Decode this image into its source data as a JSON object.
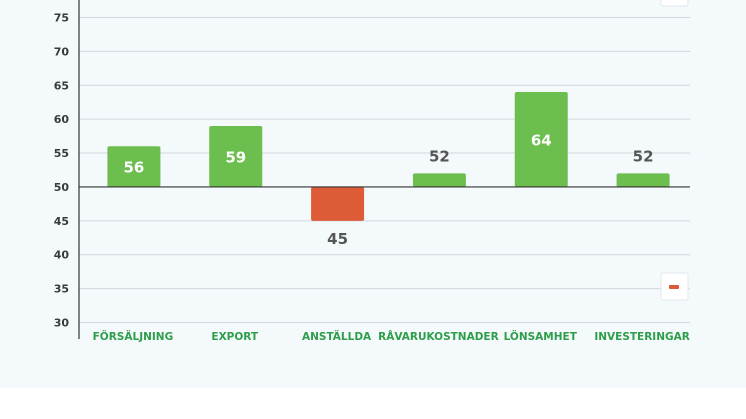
{
  "chart_data": {
    "type": "bar",
    "title": "",
    "xlabel": "",
    "ylabel": "",
    "baseline": 50,
    "ylim": [
      30,
      78
    ],
    "yticks": [
      30,
      35,
      40,
      45,
      50,
      55,
      60,
      65,
      70,
      75
    ],
    "categories": [
      "FÖRSÄLJNING",
      "EXPORT",
      "ANSTÄLLDA",
      "RÅVARUKOSTNADER",
      "LÖNSAMHET",
      "INVESTERINGAR"
    ],
    "values": [
      56,
      59,
      45,
      52,
      64,
      52
    ],
    "grid": true,
    "colors": {
      "positive": "#6cbf4f",
      "negative": "#de5b38",
      "tick_label": "#3a3a3a",
      "category_label": "#2e9e4a",
      "label_inside": "#ffffff",
      "label_outside": "#555555",
      "gridline": "#cfd8de",
      "axis": "#333333"
    }
  },
  "legend": {
    "position": "top-right",
    "swatch_color": "#ffffff",
    "negative_swatch_color": "#de5b38"
  }
}
